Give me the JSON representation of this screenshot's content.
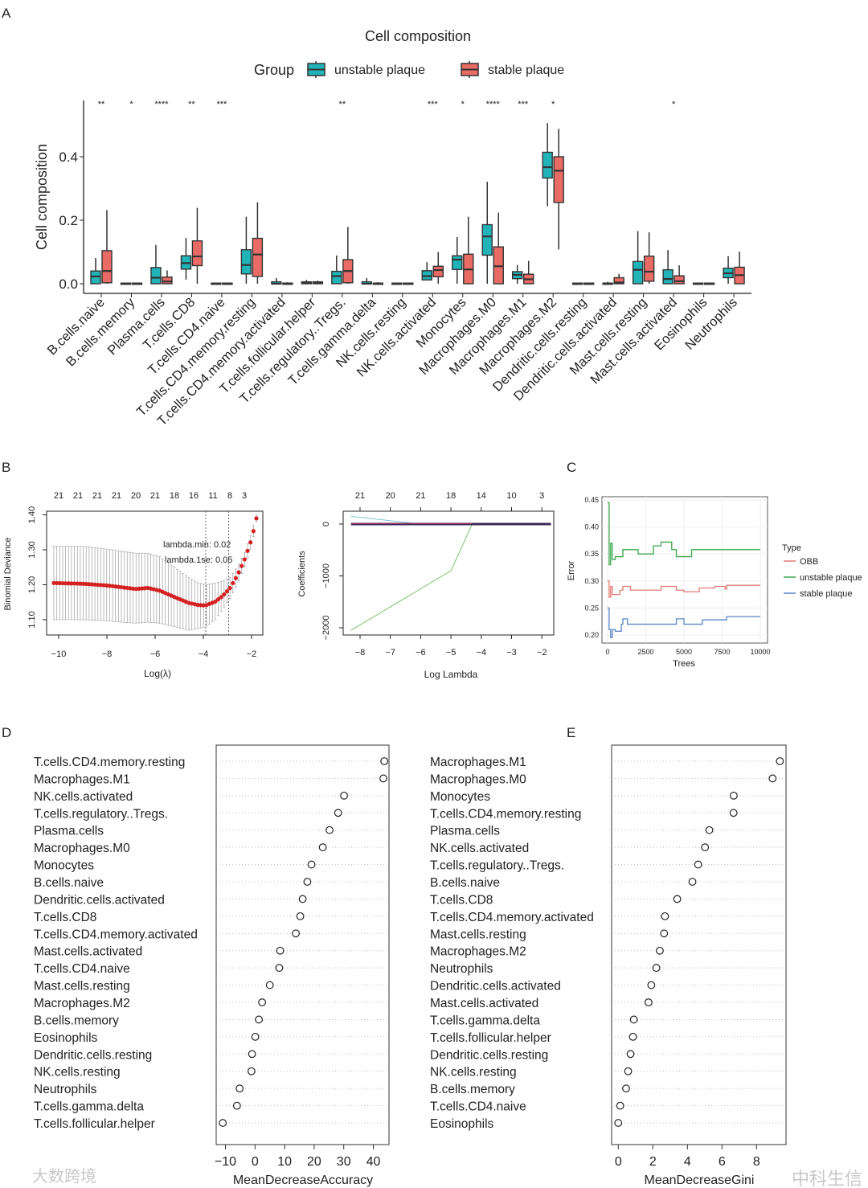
{
  "panel_letters": [
    "A",
    "B",
    "C",
    "D",
    "E"
  ],
  "colors": {
    "unstable": "#22b3b8",
    "stable": "#ea6b65",
    "oob": "#e07b73",
    "unstable_line": "#3aa74a",
    "stable_line": "#5b86c8",
    "deviance": "#d42020",
    "green_path": "#7cc36a",
    "cyan_path": "#7fc9d6"
  },
  "watermarks": {
    "left": "大数跨境",
    "right": "中科生信"
  },
  "chart_data": [
    {
      "id": "A",
      "type": "box",
      "title": "Cell composition",
      "ylabel": "Cell composition",
      "xlabel": "",
      "ylim": [
        0,
        0.55
      ],
      "yticks": [
        "0.0",
        "0.2",
        "0.4"
      ],
      "ytick_values": [
        0,
        0.2,
        0.4
      ],
      "legend": {
        "title": "Group",
        "position": "top",
        "entries": [
          "unstable plaque",
          "stable plaque"
        ]
      },
      "categories": [
        "B.cells.naive",
        "B.cells.memory",
        "Plasma.cells",
        "T.cells.CD8",
        "T.cells.CD4.naive",
        "T.cells.CD4.memory.resting",
        "T.cells.CD4.memory.activated",
        "T.cells.follicular.helper",
        "T.cells.regulatory..Tregs.",
        "T.cells.gamma.delta",
        "NK.cells.resting",
        "NK.cells.activated",
        "Monocytes",
        "Macrophages.M0",
        "Macrophages.M1",
        "Macrophages.M2",
        "Dendritic.cells.resting",
        "Dendritic.cells.activated",
        "Mast.cells.resting",
        "Mast.cells.activated",
        "Eosinophils",
        "Neutrophils"
      ],
      "significance": [
        "**",
        "*",
        "****",
        "**",
        "***",
        "",
        "",
        "",
        "**",
        "",
        "",
        "***",
        "*",
        "****",
        "***",
        "*",
        "",
        "",
        "",
        "*",
        "",
        ""
      ],
      "series": [
        {
          "name": "unstable plaque",
          "stats_min_q1_med_q3_max": [
            [
              0,
              0,
              0.023,
              0.04,
              0.081
            ],
            [
              0,
              0,
              0,
              0.002,
              0.003
            ],
            [
              0,
              0,
              0.019,
              0.051,
              0.122
            ],
            [
              0.013,
              0.046,
              0.065,
              0.088,
              0.144
            ],
            [
              0,
              0,
              0,
              0.002,
              0.003
            ],
            [
              0,
              0.031,
              0.059,
              0.107,
              0.211
            ],
            [
              0,
              0,
              0,
              0.006,
              0.018
            ],
            [
              0,
              0,
              0.002,
              0.006,
              0.012
            ],
            [
              0,
              0,
              0.024,
              0.039,
              0.089
            ],
            [
              0,
              0,
              0,
              0.006,
              0.018
            ],
            [
              0,
              0,
              0,
              0.002,
              0.003
            ],
            [
              0.011,
              0.012,
              0.024,
              0.041,
              0.068
            ],
            [
              0,
              0.045,
              0.076,
              0.088,
              0.147
            ],
            [
              0,
              0.09,
              0.149,
              0.186,
              0.321
            ],
            [
              0,
              0.016,
              0.028,
              0.038,
              0.059
            ],
            [
              0.244,
              0.333,
              0.367,
              0.414,
              0.506
            ],
            [
              0,
              0,
              0,
              0.002,
              0.003
            ],
            [
              0,
              0,
              0,
              0.002,
              0.006
            ],
            [
              0,
              0,
              0.044,
              0.07,
              0.166
            ],
            [
              0,
              0,
              0.015,
              0.044,
              0.106
            ],
            [
              0,
              0,
              0,
              0.002,
              0.003
            ],
            [
              0,
              0.019,
              0.033,
              0.049,
              0.087
            ]
          ]
        },
        {
          "name": "stable plaque",
          "stats_min_q1_med_q3_max": [
            [
              0,
              0.003,
              0.04,
              0.104,
              0.232
            ],
            [
              0,
              0,
              0,
              0.002,
              0.003
            ],
            [
              0,
              0,
              0.007,
              0.021,
              0.042
            ],
            [
              0,
              0.057,
              0.086,
              0.135,
              0.239
            ],
            [
              0,
              0,
              0,
              0.002,
              0.003
            ],
            [
              0,
              0.023,
              0.092,
              0.143,
              0.257
            ],
            [
              0,
              0,
              0,
              0.002,
              0.005
            ],
            [
              0,
              0,
              0.002,
              0.006,
              0.01
            ],
            [
              0,
              0.003,
              0.04,
              0.076,
              0.179
            ],
            [
              0,
              0,
              0,
              0.002,
              0.005
            ],
            [
              0,
              0,
              0,
              0.002,
              0.003
            ],
            [
              0,
              0.022,
              0.043,
              0.055,
              0.1
            ],
            [
              0,
              0,
              0.045,
              0.093,
              0.211
            ],
            [
              0,
              0,
              0.055,
              0.116,
              0.224
            ],
            [
              0,
              0,
              0.014,
              0.03,
              0.072
            ],
            [
              0.108,
              0.256,
              0.356,
              0.4,
              0.488
            ],
            [
              0,
              0,
              0,
              0.002,
              0.003
            ],
            [
              0,
              0,
              0.004,
              0.019,
              0.031
            ],
            [
              0,
              0.008,
              0.038,
              0.087,
              0.162
            ],
            [
              0,
              0,
              0.008,
              0.025,
              0.058
            ],
            [
              0,
              0,
              0,
              0.002,
              0.003
            ],
            [
              0,
              0,
              0.027,
              0.052,
              0.101
            ]
          ]
        }
      ]
    },
    {
      "id": "B-left",
      "type": "scatter",
      "xlabel": "Log(λ)",
      "ylabel": "Binomial Deviance",
      "xlim": [
        -10.5,
        -1.5
      ],
      "ylim": [
        1.07,
        1.42
      ],
      "xticks": [
        "−10",
        "−8",
        "−6",
        "−4",
        "−2"
      ],
      "xtick_values": [
        -10,
        -8,
        -6,
        -4,
        -2
      ],
      "yticks": [
        "1.10",
        "1.20",
        "1.30",
        "1.40"
      ],
      "ytick_values": [
        1.1,
        1.2,
        1.3,
        1.4
      ],
      "top_ticks": [
        "21",
        "21",
        "21",
        "21",
        "20",
        "21",
        "18",
        "16",
        "11",
        "8",
        "3"
      ],
      "top_tick_values": [
        -10,
        -9.2,
        -8.4,
        -7.6,
        -6.8,
        -6.0,
        -5.2,
        -4.4,
        -3.6,
        -2.9,
        -2.3
      ],
      "annotations": [
        "lambda.min: 0.02",
        "lambda.1se: 0.05"
      ],
      "vlines": [
        -3.9,
        -2.95
      ],
      "curve": {
        "x": [
          -10.2,
          -9,
          -8,
          -7.4,
          -6.8,
          -6.3,
          -5.8,
          -5.2,
          -4.6,
          -4.2,
          -3.9,
          -3.5,
          -3.2,
          -2.9,
          -2.6,
          -2.3,
          -2.0,
          -1.8
        ],
        "y": [
          1.205,
          1.203,
          1.198,
          1.193,
          1.188,
          1.191,
          1.183,
          1.165,
          1.148,
          1.142,
          1.141,
          1.152,
          1.168,
          1.19,
          1.225,
          1.27,
          1.33,
          1.39
        ],
        "lower": [
          1.1,
          1.1,
          1.097,
          1.093,
          1.09,
          1.093,
          1.09,
          1.08,
          1.07,
          1.075,
          1.08,
          1.1,
          1.13,
          1.16,
          1.2,
          1.25,
          1.31,
          1.38
        ],
        "upper": [
          1.31,
          1.31,
          1.302,
          1.296,
          1.29,
          1.29,
          1.28,
          1.25,
          1.22,
          1.205,
          1.2,
          1.205,
          1.21,
          1.22,
          1.25,
          1.29,
          1.35,
          1.4
        ]
      }
    },
    {
      "id": "B-right",
      "type": "line",
      "xlabel": "Log Lambda",
      "ylabel": "Coefficients",
      "xlim": [
        -8.5,
        -1.5
      ],
      "ylim": [
        -2200,
        200
      ],
      "xticks": [
        "−8",
        "−7",
        "−6",
        "−5",
        "−4",
        "−3",
        "−2"
      ],
      "xtick_values": [
        -8,
        -7,
        -6,
        -5,
        -4,
        -3,
        -2
      ],
      "yticks": [
        "0",
        "−1000",
        "−2000"
      ],
      "ytick_values": [
        0,
        -1000,
        -2000
      ],
      "top_ticks": [
        "21",
        "20",
        "21",
        "18",
        "14",
        "10",
        "3"
      ],
      "top_tick_values": [
        -8,
        -7,
        -6,
        -5,
        -4,
        -3,
        -2
      ],
      "series": [
        {
          "name": "green",
          "x": [
            -8.3,
            -5,
            -4.3,
            -1.7
          ],
          "y": [
            -2050,
            -900,
            0,
            0
          ]
        },
        {
          "name": "cyan",
          "x": [
            -8.3,
            -6,
            -1.7
          ],
          "y": [
            150,
            0,
            0
          ]
        },
        {
          "name": "dark",
          "x": [
            -8.3,
            -1.7
          ],
          "y": [
            0,
            0
          ]
        }
      ]
    },
    {
      "id": "C",
      "type": "line",
      "xlabel": "Trees",
      "ylabel": "Error",
      "xlim": [
        -400,
        10400
      ],
      "ylim": [
        0.19,
        0.455
      ],
      "xticks": [
        "0",
        "2500",
        "5000",
        "7500",
        "10000"
      ],
      "xtick_values": [
        0,
        2500,
        5000,
        7500,
        10000
      ],
      "yticks": [
        "0.20",
        "0.25",
        "0.30",
        "0.35",
        "0.40",
        "0.45"
      ],
      "ytick_values": [
        0.2,
        0.25,
        0.3,
        0.35,
        0.4,
        0.45
      ],
      "legend": {
        "title": "Type",
        "position": "right"
      },
      "series": [
        {
          "name": "OBB",
          "x": [
            0,
            100,
            200,
            300,
            500,
            800,
            1000,
            1500,
            2500,
            3500,
            4500,
            5000,
            6000,
            7000,
            7700,
            7800,
            10000
          ],
          "y": [
            0.3,
            0.27,
            0.29,
            0.275,
            0.275,
            0.283,
            0.29,
            0.283,
            0.283,
            0.29,
            0.283,
            0.28,
            0.287,
            0.29,
            0.285,
            0.292,
            0.292
          ]
        },
        {
          "name": "unstable plaque",
          "x": [
            0,
            100,
            200,
            300,
            500,
            1000,
            2000,
            3000,
            3500,
            4200,
            4500,
            5500,
            10000
          ],
          "y": [
            0.445,
            0.33,
            0.37,
            0.34,
            0.345,
            0.358,
            0.35,
            0.365,
            0.372,
            0.358,
            0.345,
            0.358,
            0.358
          ]
        },
        {
          "name": "stable plaque",
          "x": [
            0,
            100,
            200,
            300,
            500,
            900,
            1000,
            1300,
            4500,
            5000,
            6200,
            7800,
            10000
          ],
          "y": [
            0.25,
            0.21,
            0.195,
            0.21,
            0.207,
            0.22,
            0.23,
            0.22,
            0.23,
            0.22,
            0.228,
            0.234,
            0.234
          ]
        }
      ]
    },
    {
      "id": "D",
      "type": "scatter",
      "xlabel": "MeanDecreaseAccuracy",
      "xlim": [
        -12,
        46
      ],
      "xticks": [
        "−10",
        "0",
        "10",
        "20",
        "30",
        "40"
      ],
      "xtick_values": [
        -10,
        0,
        10,
        20,
        30,
        40
      ],
      "categories": [
        "T.cells.CD4.memory.resting",
        "Macrophages.M1",
        "NK.cells.activated",
        "T.cells.regulatory..Tregs.",
        "Plasma.cells",
        "Macrophages.M0",
        "Monocytes",
        "B.cells.naive",
        "Dendritic.cells.activated",
        "T.cells.CD8",
        "T.cells.CD4.memory.activated",
        "Mast.cells.activated",
        "T.cells.CD4.naive",
        "Mast.cells.resting",
        "Macrophages.M2",
        "B.cells.memory",
        "Eosinophils",
        "Dendritic.cells.resting",
        "NK.cells.resting",
        "Neutrophils",
        "T.cells.gamma.delta",
        "T.cells.follicular.helper"
      ],
      "values": [
        43.7,
        43.4,
        30.1,
        28.1,
        25.2,
        22.9,
        19.1,
        17.7,
        16.1,
        15.3,
        13.8,
        8.5,
        8.2,
        5.0,
        2.4,
        1.3,
        0.1,
        -1.0,
        -1.2,
        -5.2,
        -6.1,
        -10.9
      ]
    },
    {
      "id": "E",
      "type": "scatter",
      "xlabel": "MeanDecreaseGini",
      "xlim": [
        -0.4,
        9.6
      ],
      "xticks": [
        "0",
        "2",
        "4",
        "6",
        "8"
      ],
      "xtick_values": [
        0,
        2,
        4,
        6,
        8
      ],
      "categories": [
        "Macrophages.M1",
        "Macrophages.M0",
        "Monocytes",
        "T.cells.CD4.memory.resting",
        "Plasma.cells",
        "NK.cells.activated",
        "T.cells.regulatory..Tregs.",
        "B.cells.naive",
        "T.cells.CD8",
        "T.cells.CD4.memory.activated",
        "Mast.cells.resting",
        "Macrophages.M2",
        "Neutrophils",
        "Dendritic.cells.activated",
        "Mast.cells.activated",
        "T.cells.gamma.delta",
        "T.cells.follicular.helper",
        "Dendritic.cells.resting",
        "NK.cells.resting",
        "B.cells.memory",
        "T.cells.CD4.naive",
        "Eosinophils"
      ],
      "values": [
        9.35,
        8.93,
        6.68,
        6.67,
        5.27,
        5.02,
        4.62,
        4.29,
        3.41,
        2.7,
        2.65,
        2.4,
        2.2,
        1.91,
        1.75,
        0.9,
        0.85,
        0.71,
        0.57,
        0.45,
        0.11,
        0.0
      ]
    }
  ]
}
